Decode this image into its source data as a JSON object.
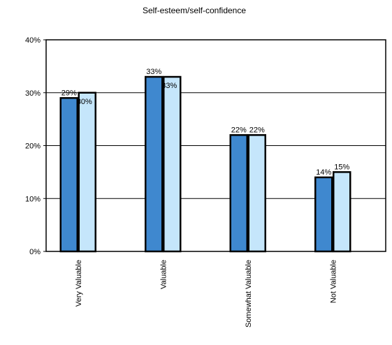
{
  "chart_data": {
    "type": "bar",
    "title": "Self-esteem/self-confidence",
    "categories": [
      "Very Valuable",
      "Valuable",
      "Somewhat Valuable",
      "Not Valuable"
    ],
    "series": [
      {
        "values": [
          29,
          33,
          22,
          14
        ],
        "labels": [
          "29%",
          "33%",
          "22%",
          "14%"
        ],
        "color": "#3f88cf"
      },
      {
        "values": [
          30,
          33,
          22,
          15
        ],
        "labels": [
          "30%",
          "33%",
          "22%",
          "15%"
        ],
        "color": "#c5e6fb"
      }
    ],
    "yticks": [
      "0%",
      "10%",
      "20%",
      "30%",
      "40%"
    ],
    "ylim": [
      0,
      40
    ],
    "grid": true,
    "legend": "none"
  }
}
